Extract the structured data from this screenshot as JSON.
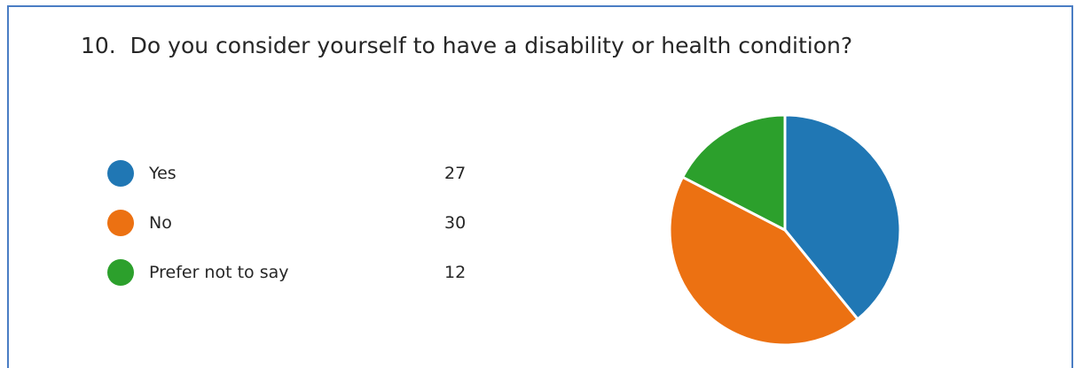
{
  "question": {
    "number": "10.",
    "text": "Do you consider yourself to have a disability or health condition?"
  },
  "chart_data": {
    "type": "pie",
    "title": "10.  Do you consider yourself to have a disability or health condition?",
    "categories": [
      "Yes",
      "No",
      "Prefer not to say"
    ],
    "values": [
      27,
      30,
      12
    ],
    "colors": [
      "#2077b4",
      "#ec7112",
      "#2ca02c"
    ],
    "legend_position": "left",
    "start_angle_deg": 0,
    "direction": "clockwise"
  }
}
